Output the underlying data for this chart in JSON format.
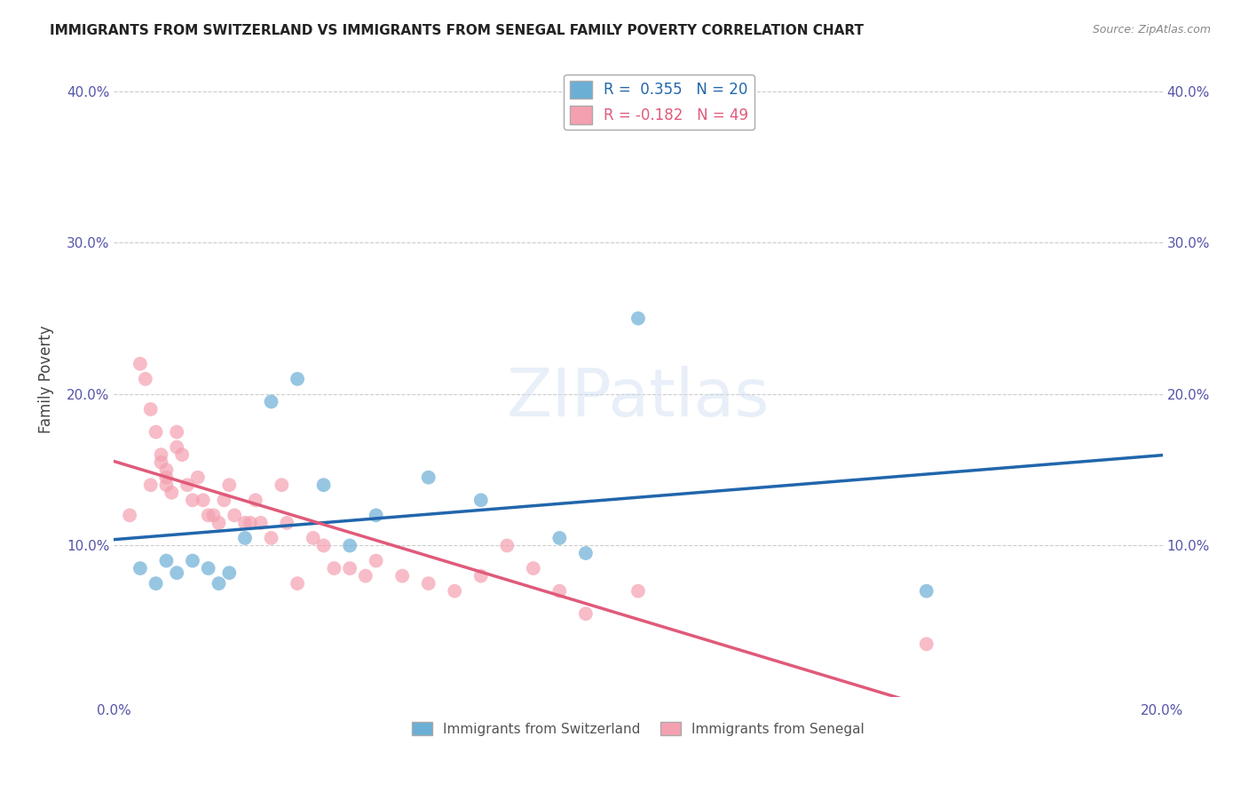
{
  "title": "IMMIGRANTS FROM SWITZERLAND VS IMMIGRANTS FROM SENEGAL FAMILY POVERTY CORRELATION CHART",
  "source": "Source: ZipAtlas.com",
  "ylabel": "Family Poverty",
  "xlim": [
    0.0,
    0.2
  ],
  "ylim": [
    0.0,
    0.42
  ],
  "ytick_labels": [
    "",
    "10.0%",
    "20.0%",
    "30.0%",
    "40.0%"
  ],
  "ytick_vals": [
    0.0,
    0.1,
    0.2,
    0.3,
    0.4
  ],
  "xtick_labels": [
    "0.0%",
    "",
    "",
    "",
    "",
    "20.0%"
  ],
  "xtick_vals": [
    0.0,
    0.04,
    0.08,
    0.12,
    0.16,
    0.2
  ],
  "legend1_R": "0.355",
  "legend1_N": "20",
  "legend2_R": "-0.182",
  "legend2_N": "49",
  "color_swiss": "#6baed6",
  "color_senegal": "#f4a0b0",
  "line_color_swiss": "#2166ac",
  "line_color_senegal": "#e05a7a",
  "background_color": "#ffffff",
  "swiss_x": [
    0.005,
    0.008,
    0.01,
    0.012,
    0.015,
    0.018,
    0.02,
    0.022,
    0.025,
    0.03,
    0.035,
    0.04,
    0.045,
    0.05,
    0.06,
    0.07,
    0.085,
    0.09,
    0.1,
    0.155
  ],
  "swiss_y": [
    0.085,
    0.075,
    0.09,
    0.082,
    0.09,
    0.085,
    0.075,
    0.082,
    0.105,
    0.195,
    0.21,
    0.14,
    0.1,
    0.12,
    0.145,
    0.13,
    0.105,
    0.095,
    0.25,
    0.07
  ],
  "senegal_x": [
    0.003,
    0.005,
    0.006,
    0.007,
    0.007,
    0.008,
    0.009,
    0.009,
    0.01,
    0.01,
    0.01,
    0.011,
    0.012,
    0.012,
    0.013,
    0.014,
    0.015,
    0.016,
    0.017,
    0.018,
    0.019,
    0.02,
    0.021,
    0.022,
    0.023,
    0.025,
    0.026,
    0.027,
    0.028,
    0.03,
    0.032,
    0.033,
    0.035,
    0.038,
    0.04,
    0.042,
    0.045,
    0.048,
    0.05,
    0.055,
    0.06,
    0.065,
    0.07,
    0.075,
    0.08,
    0.085,
    0.09,
    0.1,
    0.155
  ],
  "senegal_y": [
    0.12,
    0.22,
    0.21,
    0.19,
    0.14,
    0.175,
    0.16,
    0.155,
    0.15,
    0.145,
    0.14,
    0.135,
    0.175,
    0.165,
    0.16,
    0.14,
    0.13,
    0.145,
    0.13,
    0.12,
    0.12,
    0.115,
    0.13,
    0.14,
    0.12,
    0.115,
    0.115,
    0.13,
    0.115,
    0.105,
    0.14,
    0.115,
    0.075,
    0.105,
    0.1,
    0.085,
    0.085,
    0.08,
    0.09,
    0.08,
    0.075,
    0.07,
    0.08,
    0.1,
    0.085,
    0.07,
    0.055,
    0.07,
    0.035
  ]
}
